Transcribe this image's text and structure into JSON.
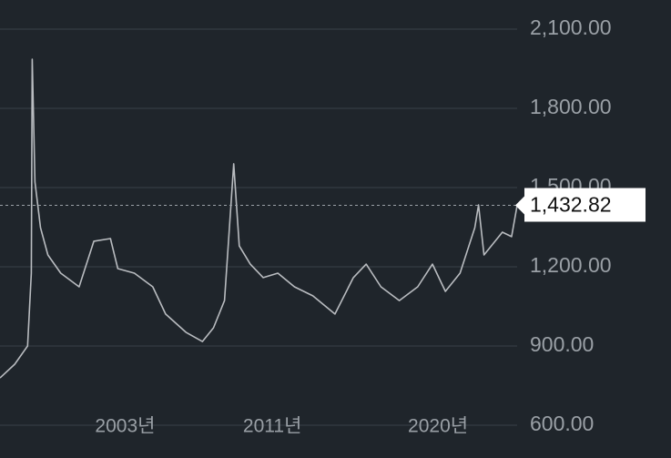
{
  "chart_data": {
    "type": "line",
    "x": [
      1996.2,
      1997.0,
      1997.7,
      1997.9,
      1997.95,
      1998.1,
      1998.4,
      1998.8,
      1999.5,
      2000.5,
      2001.3,
      2002.2,
      2002.6,
      2003.5,
      2004.5,
      2005.2,
      2006.3,
      2007.2,
      2007.8,
      2008.4,
      2008.9,
      2009.2,
      2009.8,
      2010.5,
      2011.3,
      2012.2,
      2013.2,
      2014.4,
      2015.4,
      2016.1,
      2016.9,
      2017.9,
      2018.9,
      2019.7,
      2020.4,
      2021.2,
      2022.0,
      2022.2,
      2022.5,
      2023.5,
      2024.0,
      2024.3
    ],
    "series": [
      {
        "color": "#b9bcc0",
        "values": [
          779,
          831,
          900,
          1176,
          1986,
          1521,
          1348,
          1245,
          1176,
          1124,
          1297,
          1307,
          1193,
          1176,
          1124,
          1021,
          952,
          917,
          969,
          1072,
          1590,
          1279,
          1210,
          1159,
          1176,
          1124,
          1090,
          1021,
          1159,
          1210,
          1124,
          1072,
          1124,
          1210,
          1107,
          1176,
          1348,
          1434,
          1245,
          1331,
          1314,
          1432.82
        ]
      }
    ],
    "last_value": {
      "value": 1432.82,
      "label": "1,432.82"
    },
    "xlim": [
      1996.2,
      2024.3
    ],
    "xticks": [
      {
        "value": 2003,
        "label": "2003년"
      },
      {
        "value": 2011,
        "label": "2011년"
      },
      {
        "value": 2020,
        "label": "2020년"
      }
    ],
    "ylim": [
      600,
      2100
    ],
    "yticks": [
      {
        "value": 600,
        "label": "600.00"
      },
      {
        "value": 900,
        "label": "900.00"
      },
      {
        "value": 1200,
        "label": "1,200.00"
      },
      {
        "value": 1500,
        "label": "1,500.00"
      },
      {
        "value": 1800,
        "label": "1,800.00"
      },
      {
        "value": 2100,
        "label": "2,100.00"
      }
    ],
    "grid": true
  }
}
